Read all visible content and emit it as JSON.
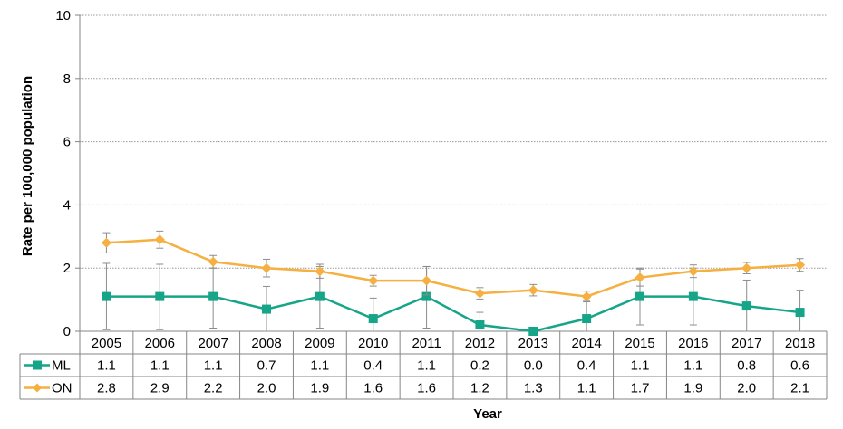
{
  "chart_data": {
    "type": "line",
    "xlabel": "Year",
    "ylabel": "Rate per 100,000 population",
    "ylim": [
      0,
      10
    ],
    "yticks": [
      "0",
      "2",
      "4",
      "6",
      "8",
      "10"
    ],
    "grid": "horizontal dotted",
    "legend": "left, inside data table",
    "categories": [
      "2005",
      "2006",
      "2007",
      "2008",
      "2009",
      "2010",
      "2011",
      "2012",
      "2013",
      "2014",
      "2015",
      "2016",
      "2017",
      "2018"
    ],
    "series": [
      {
        "name": "ML",
        "color": "#17a589",
        "marker": "square",
        "values": [
          1.1,
          1.1,
          1.1,
          0.7,
          1.1,
          0.4,
          1.1,
          0.2,
          0.0,
          0.4,
          1.1,
          1.1,
          0.8,
          0.6
        ],
        "labels": [
          "1.1",
          "1.1",
          "1.1",
          "0.7",
          "1.1",
          "0.4",
          "1.1",
          "0.2",
          "0.0",
          "0.4",
          "1.1",
          "1.1",
          "0.8",
          "0.6"
        ],
        "ci_upper": [
          2.15,
          2.12,
          2.0,
          1.42,
          2.05,
          1.05,
          2.05,
          0.6,
          0.0,
          0.95,
          2.0,
          2.0,
          1.62,
          1.3
        ],
        "ci_lower": [
          0.05,
          0.05,
          0.1,
          0.0,
          0.1,
          0.0,
          0.1,
          0.0,
          0.0,
          0.0,
          0.2,
          0.2,
          0.0,
          0.0
        ]
      },
      {
        "name": "ON",
        "color": "#f5b041",
        "marker": "diamond",
        "values": [
          2.8,
          2.9,
          2.2,
          2.0,
          1.9,
          1.6,
          1.6,
          1.2,
          1.3,
          1.1,
          1.7,
          1.9,
          2.0,
          2.1
        ],
        "labels": [
          "2.8",
          "2.9",
          "2.2",
          "2.0",
          "1.9",
          "1.6",
          "1.6",
          "1.2",
          "1.3",
          "1.1",
          "1.7",
          "1.9",
          "2.0",
          "2.1"
        ],
        "ci_upper": [
          3.12,
          3.17,
          2.4,
          2.28,
          2.12,
          1.77,
          2.05,
          1.38,
          1.48,
          1.27,
          1.97,
          2.1,
          2.18,
          2.3
        ],
        "ci_lower": [
          2.48,
          2.63,
          2.0,
          1.72,
          1.68,
          1.43,
          1.15,
          1.02,
          1.12,
          0.93,
          1.43,
          1.7,
          1.82,
          1.9
        ]
      }
    ]
  }
}
